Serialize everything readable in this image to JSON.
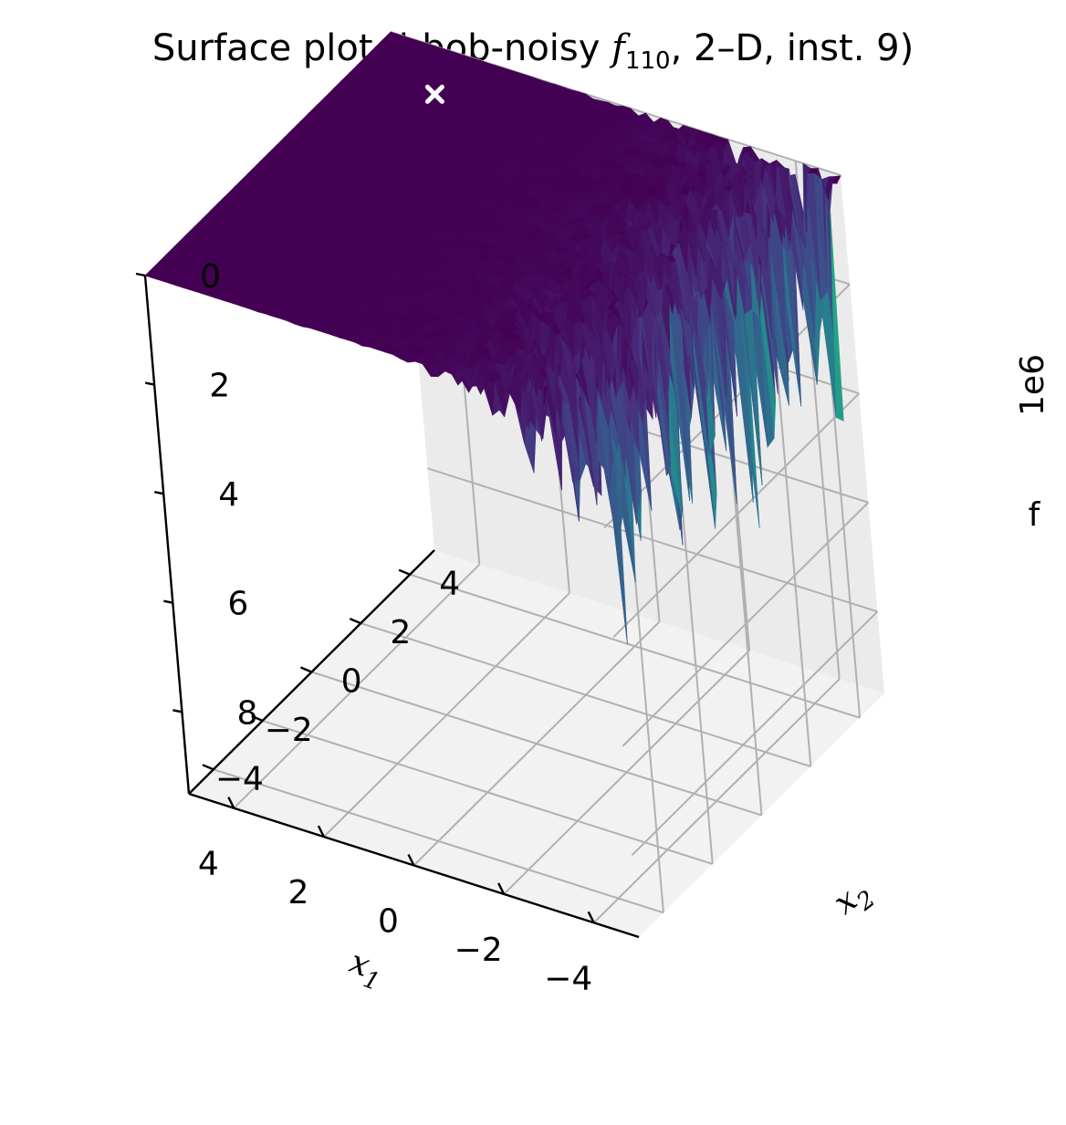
{
  "chart_data": {
    "type": "surface",
    "title": {
      "prefix": "Surface plot (bbob-noisy ",
      "fname": "f",
      "fsub": "110",
      "suffix": ", 2–D, inst. 9)"
    },
    "x1": {
      "label": "x",
      "label_sub": "1",
      "range": [
        -5,
        5
      ],
      "ticks": [
        -4,
        -2,
        0,
        2,
        4
      ],
      "tick_labels": [
        "−4",
        "−2",
        "0",
        "2",
        "4"
      ]
    },
    "x2": {
      "label": "x",
      "label_sub": "2",
      "range": [
        -5,
        5
      ],
      "ticks": [
        -4,
        -2,
        0,
        2,
        4
      ],
      "tick_labels": [
        "−4",
        "−2",
        "0",
        "2",
        "4"
      ]
    },
    "z": {
      "label": "f",
      "offset_label": "1e6",
      "range": [
        0,
        9.5
      ],
      "ticks": [
        0,
        2,
        4,
        6,
        8
      ],
      "tick_labels": [
        "0",
        "2",
        "4",
        "6",
        "8"
      ],
      "inverted": true
    },
    "colormap": "viridis",
    "surface_level": 0.0,
    "noise_peak_approx": 5.0,
    "noise_region": "low x1 (near −5), decaying toward x1 = 0",
    "optimum_marker": {
      "symbol": "x",
      "color": "#ffffff",
      "x1": 3.2,
      "x2": 3.5,
      "f": 0
    },
    "grid": true
  }
}
